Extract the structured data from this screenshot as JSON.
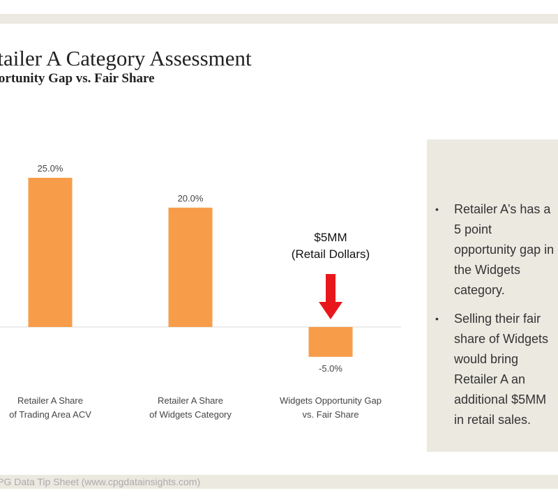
{
  "title": "Retailer A Category Assessment",
  "subtitle": "Opportunity Gap vs. Fair Share",
  "chart_data": {
    "type": "bar",
    "categories": [
      [
        "Retailer A Share",
        "of Trading Area ACV"
      ],
      [
        "Retailer A Share",
        "of Widgets Category"
      ],
      [
        "Widgets Opportunity Gap",
        "vs. Fair Share"
      ]
    ],
    "values": [
      25.0,
      20.0,
      -5.0
    ],
    "data_labels": [
      "25.0%",
      "20.0%",
      "-5.0%"
    ],
    "ylim": [
      -10,
      25
    ],
    "grid": false,
    "bar_color": "#f79d4a",
    "annotation": {
      "line1": "$5MM",
      "line2": "(Retail Dollars)",
      "arrow_color": "#e8171b",
      "target_index": 2
    }
  },
  "panel": {
    "bullets": [
      "Retailer A’s has a 5 point opportunity gap in the Widgets category.",
      "Selling their fair share of Widgets would bring Retailer A an additional $5MM in retail sales."
    ]
  },
  "footer": "CPG Data Tip Sheet (www.cpgdatainsights.com)",
  "colors": {
    "band": "#ece9e1",
    "bar": "#f79d4a",
    "arrow": "#e8171b"
  }
}
